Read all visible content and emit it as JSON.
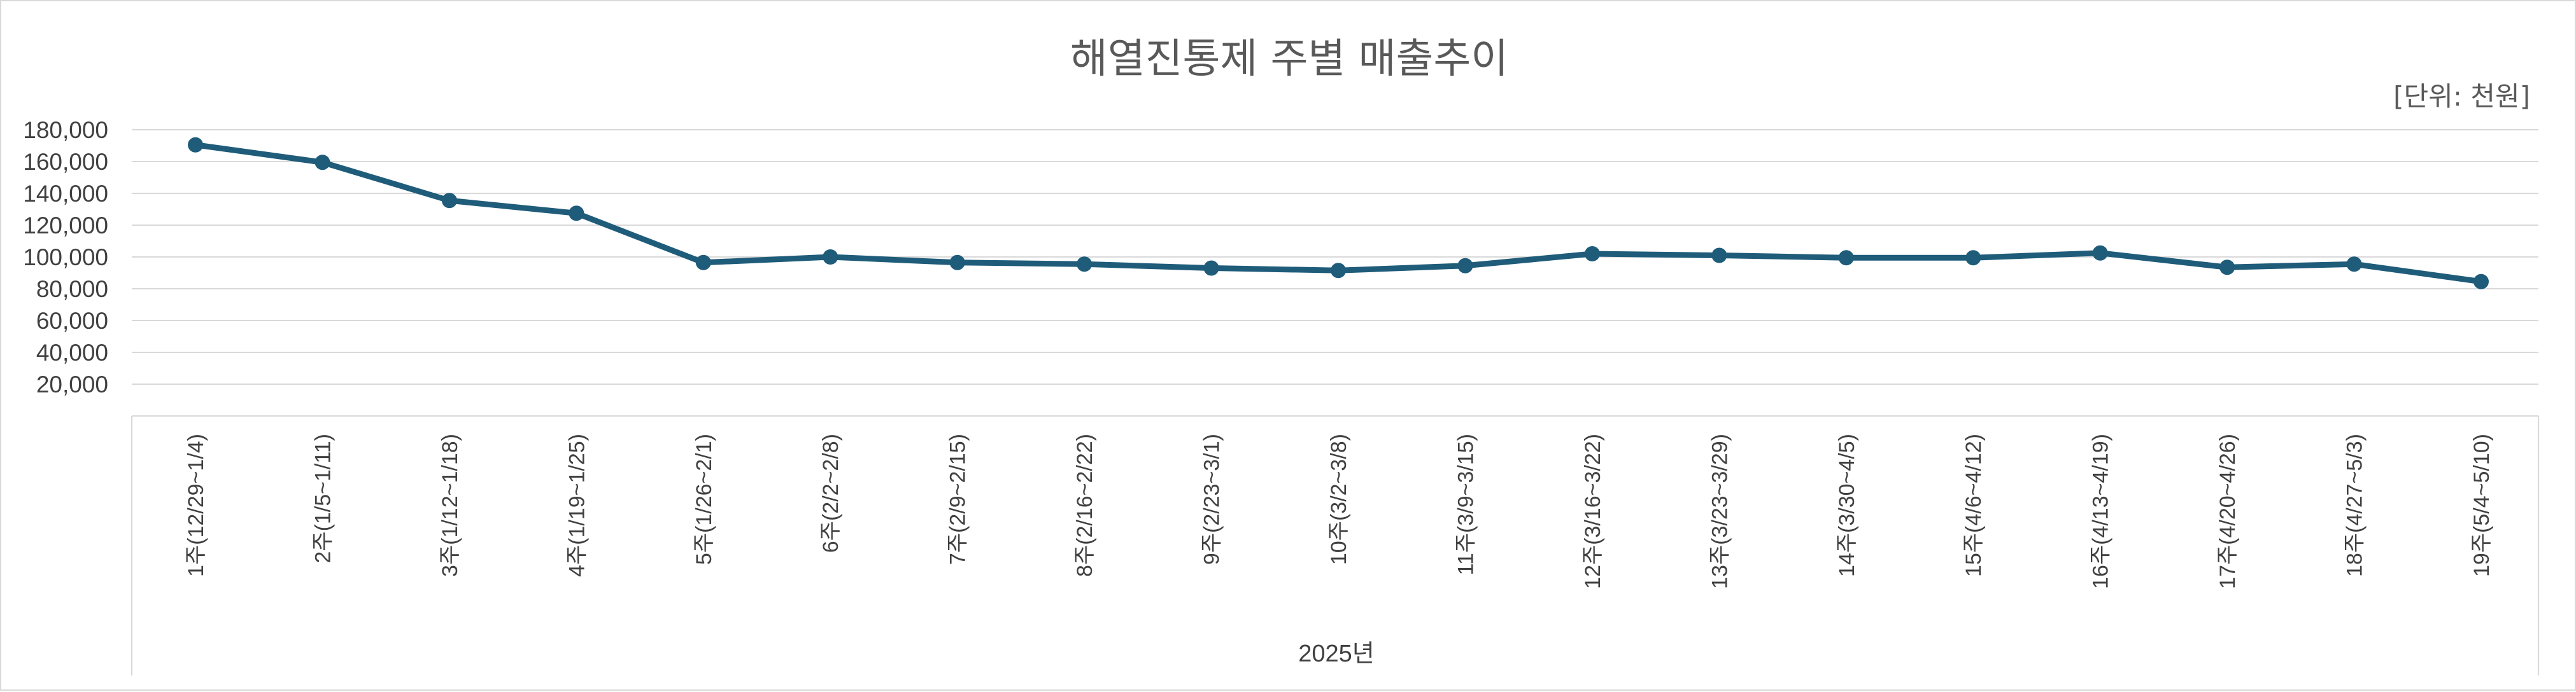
{
  "chart_data": {
    "type": "line",
    "title": "해열진통제 주별 매출추이",
    "unit_label": "[단위: 천원]",
    "xlabel": "2025년",
    "ylabel": "",
    "ylim": [
      0,
      180000
    ],
    "y_ticks": [
      "20,000",
      "40,000",
      "60,000",
      "80,000",
      "100,000",
      "120,000",
      "140,000",
      "160,000",
      "180,000"
    ],
    "grid": true,
    "categories": [
      "1주(12/29~1/4)",
      "2주(1/5~1/11)",
      "3주(1/12~1/18)",
      "4주(1/19~1/25)",
      "5주(1/26~2/1)",
      "6주(2/2~2/8)",
      "7주(2/9~2/15)",
      "8주(2/16~2/22)",
      "9주(2/23~3/1)",
      "10주(3/2~3/8)",
      "11주(3/9~3/15)",
      "12주(3/16~3/22)",
      "13주(3/23~3/29)",
      "14주(3/30~4/5)",
      "15주(4/6~4/12)",
      "16주(4/13~4/19)",
      "17주(4/20~4/26)",
      "18주(4/27~5/3)",
      "19주(5/4~5/10)"
    ],
    "series": [
      {
        "name": "매출",
        "color": "#1f5c7a",
        "values": [
          170500,
          159500,
          135500,
          127500,
          96500,
          100000,
          96500,
          95500,
          93000,
          91500,
          94500,
          102000,
          101000,
          99500,
          99500,
          102500,
          93500,
          95500,
          84500
        ]
      }
    ]
  }
}
